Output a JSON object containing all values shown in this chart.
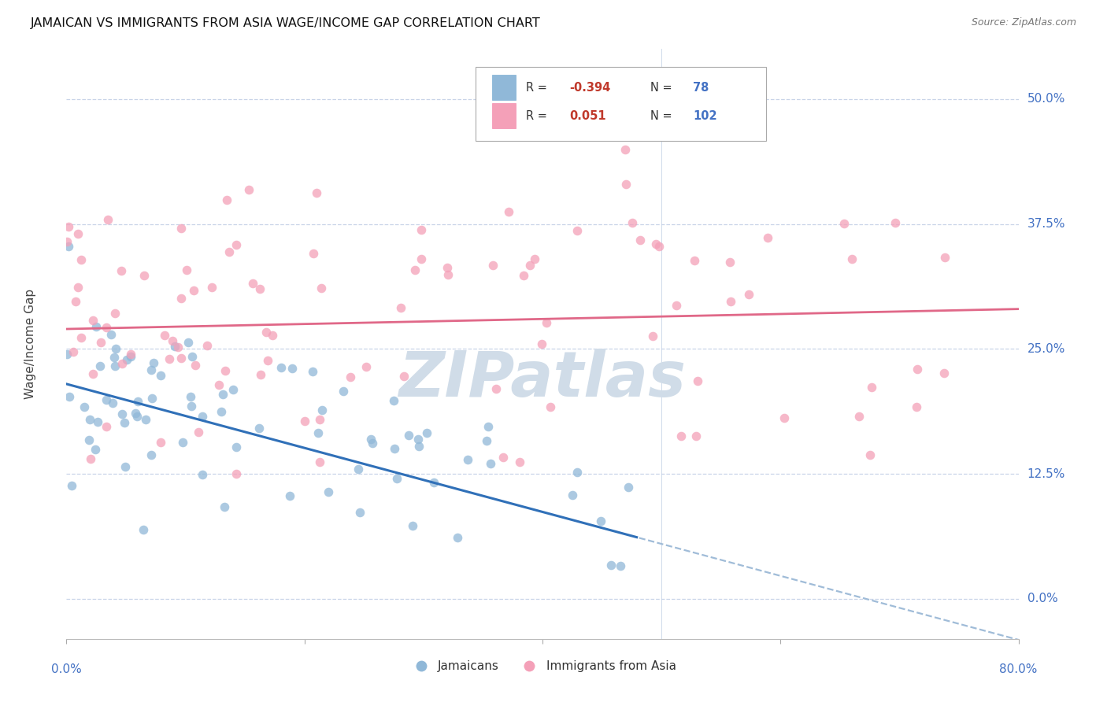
{
  "title": "JAMAICAN VS IMMIGRANTS FROM ASIA WAGE/INCOME GAP CORRELATION CHART",
  "source": "Source: ZipAtlas.com",
  "ylabel": "Wage/Income Gap",
  "ytick_labels": [
    "0.0%",
    "12.5%",
    "25.0%",
    "37.5%",
    "50.0%"
  ],
  "ytick_values": [
    0.0,
    0.125,
    0.25,
    0.375,
    0.5
  ],
  "xlim": [
    0.0,
    0.8
  ],
  "ylim": [
    -0.04,
    0.55
  ],
  "series1_name": "Jamaicans",
  "series2_name": "Immigrants from Asia",
  "series1_color": "#90b8d8",
  "series2_color": "#f4a0b8",
  "series1_line_color": "#3070b8",
  "series2_line_color": "#e06888",
  "series1_R": -0.394,
  "series1_N": 78,
  "series2_R": 0.051,
  "series2_N": 102,
  "background_color": "#ffffff",
  "grid_color": "#c8d4e8",
  "watermark_color": "#d0dce8",
  "title_fontsize": 11.5,
  "source_fontsize": 9,
  "axis_label_color": "#4472c4",
  "tick_label_color": "#4472c4",
  "legend_R_color": "#c0392b",
  "legend_N_color": "#4472c4"
}
